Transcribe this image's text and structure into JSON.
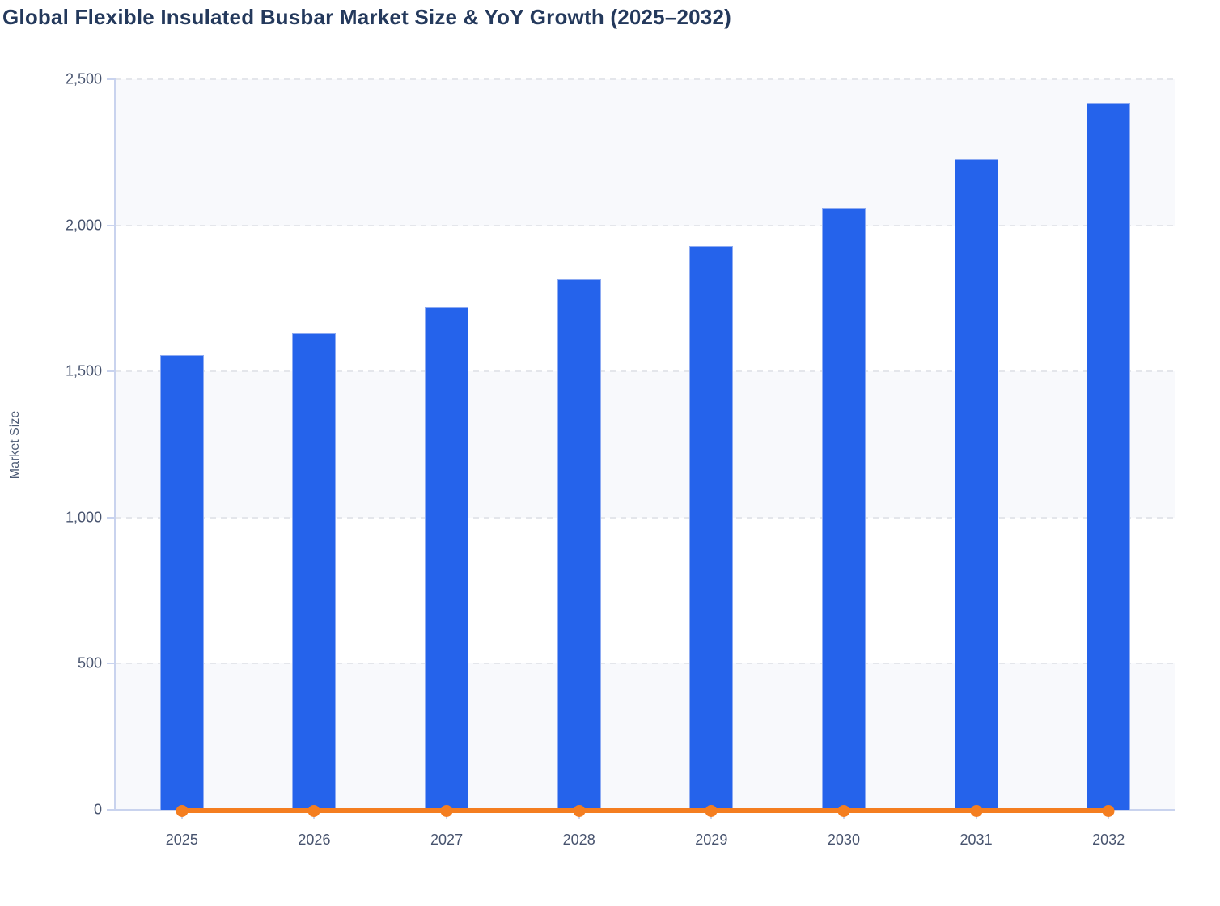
{
  "title": "Global Flexible Insulated Busbar Market Size & YoY Growth (2025–2032)",
  "colors": {
    "title_text": "#24395c",
    "bar_fill": "#2563eb",
    "line_orange": "#f47e20",
    "axis_line": "#c9d3ee",
    "gridline": "#e4e6eb",
    "band_fill": "#f8f9fc",
    "tick_text": "#47536e",
    "axis_title_text": "#4d5b75"
  },
  "chart_data": {
    "type": "bar",
    "combo": "bar + line",
    "title": "Global Flexible Insulated Busbar Market Size & YoY Growth (2025–2032)",
    "xlabel": "",
    "ylabel": "Market Size",
    "categories": [
      "2025",
      "2026",
      "2027",
      "2028",
      "2029",
      "2030",
      "2031",
      "2032"
    ],
    "series": [
      {
        "name": "Market Size",
        "type": "bar",
        "color": "#2563eb",
        "values": [
          1555,
          1630,
          1720,
          1815,
          1930,
          2060,
          2225,
          2420
        ]
      },
      {
        "name": "YoY Growth",
        "type": "line",
        "color": "#f47e20",
        "values": [
          0,
          0,
          0,
          0,
          0,
          0,
          0,
          0
        ],
        "note": "line with round markers rendered flat at ~0 on the Market Size axis"
      }
    ],
    "ylim": [
      0,
      2500
    ],
    "yticks": [
      {
        "value": 0,
        "label": "0"
      },
      {
        "value": 500,
        "label": "500"
      },
      {
        "value": 1000,
        "label": "1,000"
      },
      {
        "value": 1500,
        "label": "1,500"
      },
      {
        "value": 2000,
        "label": "2,000"
      },
      {
        "value": 2500,
        "label": "2,500"
      }
    ],
    "grid": "dashed horizontal gridlines at each y tick",
    "plot_bands": [
      [
        0,
        500
      ],
      [
        1000,
        1500
      ],
      [
        2000,
        2500
      ]
    ],
    "legend": "none"
  }
}
